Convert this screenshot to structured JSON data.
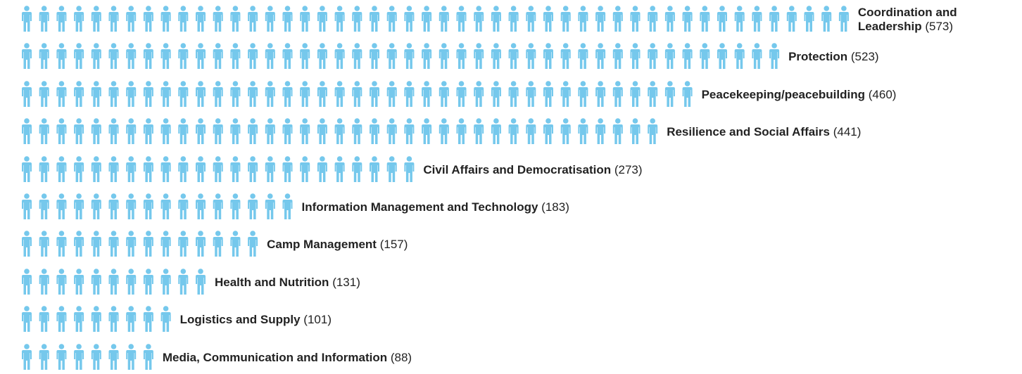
{
  "chart_data": {
    "type": "pictogram",
    "categories": [
      "Coordination and Leadership",
      "Protection",
      "Peacekeeping/peacebuilding",
      "Resilience and Social Affairs",
      "Civil Affairs and Democratisation",
      "Information Management and Technology",
      "Camp Management",
      "Health and Nutrition",
      "Logistics and Supply",
      "Media, Communication and Information"
    ],
    "values": [
      573,
      523,
      460,
      441,
      273,
      183,
      157,
      131,
      101,
      88
    ],
    "value_labels": [
      "(573)",
      "(523)",
      "(460)",
      "(441)",
      "(273)",
      "(183)",
      "(157)",
      "(131)",
      "(101)",
      "(88)"
    ],
    "color": "#75c8ec"
  }
}
